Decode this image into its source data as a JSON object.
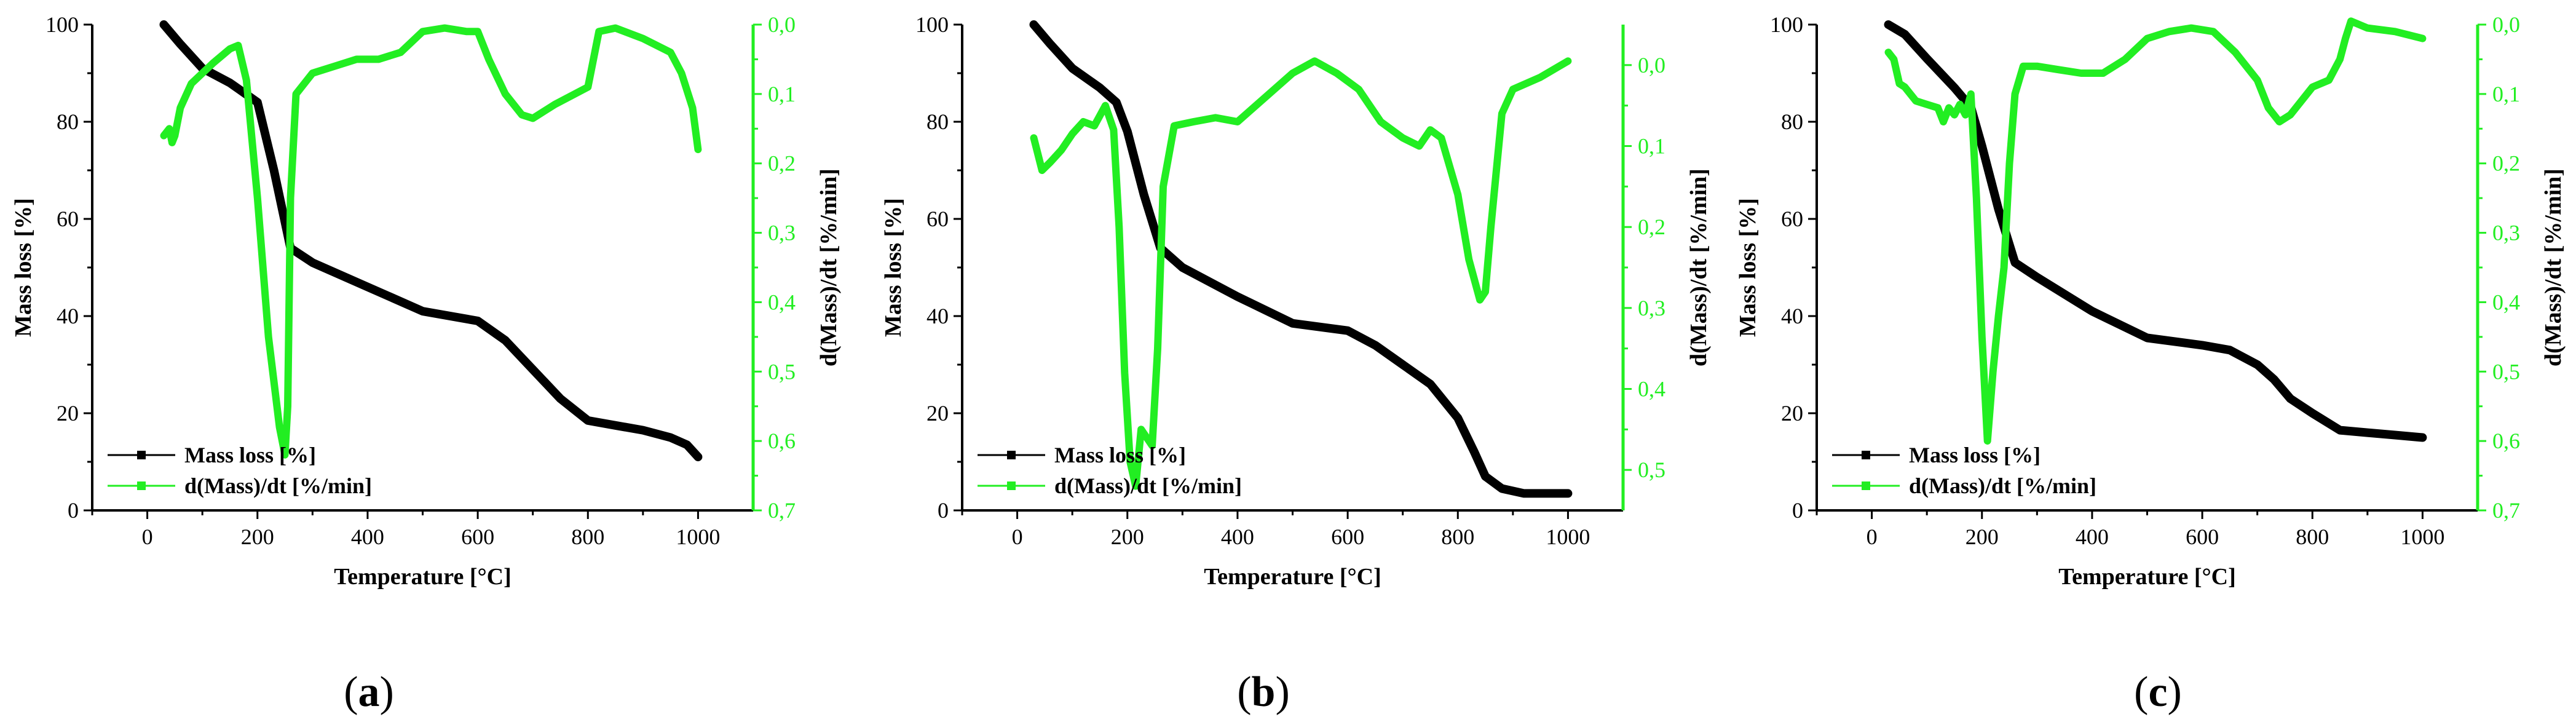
{
  "chart_data": [
    {
      "panel_label": "a",
      "type": "line",
      "xlabel": "Temperature [°C]",
      "ylabel": "Mass loss [%]",
      "y2label": "d(Mass)/dt [%/min]",
      "xlim": [
        -100,
        1100
      ],
      "ylim": [
        0,
        100
      ],
      "y2lim": [
        0.0,
        0.7
      ],
      "y2_inverted": true,
      "x_ticks": [
        "0",
        "200",
        "400",
        "600",
        "800",
        "1000"
      ],
      "y_ticks": [
        "0",
        "20",
        "40",
        "60",
        "80",
        "100"
      ],
      "y2_ticks": [
        "0,0",
        "0,1",
        "0,2",
        "0,3",
        "0,4",
        "0,5",
        "0,6",
        "0,7"
      ],
      "legend_position": "bottom-left",
      "series": [
        {
          "name": "Mass loss [%]",
          "axis": "left",
          "color": "#000000",
          "x": [
            30,
            60,
            100,
            150,
            200,
            230,
            260,
            300,
            400,
            500,
            600,
            650,
            700,
            750,
            800,
            850,
            900,
            950,
            980,
            1000
          ],
          "y": [
            100,
            96,
            91,
            88,
            84,
            70,
            54,
            51,
            46,
            41,
            39,
            35,
            29,
            23,
            18.5,
            17.5,
            16.5,
            15,
            13.5,
            11
          ]
        },
        {
          "name": "d(Mass)/dt [%/min]",
          "axis": "right",
          "color": "#22ee22",
          "x": [
            30,
            40,
            45,
            50,
            60,
            80,
            100,
            120,
            150,
            165,
            180,
            200,
            220,
            240,
            250,
            255,
            260,
            270,
            300,
            340,
            380,
            420,
            460,
            500,
            540,
            580,
            600,
            620,
            650,
            680,
            700,
            740,
            800,
            820,
            850,
            900,
            950,
            970,
            990,
            1000
          ],
          "y": [
            0.16,
            0.15,
            0.17,
            0.16,
            0.12,
            0.085,
            0.07,
            0.055,
            0.035,
            0.03,
            0.08,
            0.25,
            0.45,
            0.58,
            0.62,
            0.55,
            0.25,
            0.1,
            0.07,
            0.06,
            0.05,
            0.05,
            0.04,
            0.01,
            0.005,
            0.01,
            0.01,
            0.05,
            0.1,
            0.13,
            0.135,
            0.115,
            0.09,
            0.01,
            0.005,
            0.02,
            0.04,
            0.07,
            0.12,
            0.18
          ]
        }
      ]
    },
    {
      "panel_label": "b",
      "type": "line",
      "xlabel": "Temperature [°C]",
      "ylabel": "Mass loss [%]",
      "y2label": "d(Mass)/dt [%/min]",
      "xlim": [
        -100,
        1100
      ],
      "ylim": [
        0,
        100
      ],
      "y2lim": [
        -0.05,
        0.55
      ],
      "y2_inverted": true,
      "x_ticks": [
        "0",
        "200",
        "400",
        "600",
        "800",
        "1000"
      ],
      "y_ticks": [
        "0",
        "20",
        "40",
        "60",
        "80",
        "100"
      ],
      "y2_ticks": [
        "0,0",
        "0,1",
        "0,2",
        "0,3",
        "0,4",
        "0,5"
      ],
      "legend_position": "bottom-left",
      "series": [
        {
          "name": "Mass loss [%]",
          "axis": "left",
          "color": "#000000",
          "x": [
            30,
            60,
            100,
            150,
            180,
            200,
            230,
            260,
            300,
            400,
            500,
            600,
            650,
            700,
            750,
            800,
            830,
            850,
            880,
            920,
            1000
          ],
          "y": [
            100,
            96,
            91,
            87,
            84,
            78,
            65,
            54,
            50,
            44,
            38.5,
            37,
            34,
            30,
            26,
            19,
            12,
            7,
            4.5,
            3.5,
            3.5
          ]
        },
        {
          "name": "d(Mass)/dt [%/min]",
          "axis": "right",
          "color": "#22ee22",
          "x": [
            30,
            45,
            60,
            80,
            100,
            120,
            140,
            160,
            175,
            185,
            195,
            205,
            215,
            225,
            235,
            245,
            255,
            265,
            285,
            320,
            360,
            400,
            450,
            500,
            540,
            580,
            620,
            660,
            700,
            730,
            750,
            770,
            800,
            820,
            840,
            850,
            860,
            880,
            900,
            950,
            1000
          ],
          "y": [
            0.09,
            0.13,
            0.12,
            0.105,
            0.085,
            0.07,
            0.075,
            0.05,
            0.08,
            0.2,
            0.38,
            0.49,
            0.52,
            0.45,
            0.46,
            0.47,
            0.35,
            0.15,
            0.075,
            0.07,
            0.065,
            0.07,
            0.04,
            0.01,
            -0.005,
            0.01,
            0.03,
            0.07,
            0.09,
            0.1,
            0.08,
            0.09,
            0.16,
            0.24,
            0.29,
            0.28,
            0.2,
            0.06,
            0.03,
            0.015,
            -0.005
          ]
        }
      ]
    },
    {
      "panel_label": "c",
      "type": "line",
      "xlabel": "Temperature [°C]",
      "ylabel": "Mass loss [%]",
      "y2label": "d(Mass)/dt [%/min]",
      "xlim": [
        -100,
        1100
      ],
      "ylim": [
        0,
        100
      ],
      "y2lim": [
        0.0,
        0.7
      ],
      "y2_inverted": true,
      "x_ticks": [
        "0",
        "200",
        "400",
        "600",
        "800",
        "1000"
      ],
      "y_ticks": [
        "0",
        "20",
        "40",
        "60",
        "80",
        "100"
      ],
      "y2_ticks": [
        "0,0",
        "0,1",
        "0,2",
        "0,3",
        "0,4",
        "0,5",
        "0,6",
        "0,7"
      ],
      "legend_position": "bottom-left",
      "series": [
        {
          "name": "Mass loss [%]",
          "axis": "left",
          "color": "#000000",
          "x": [
            30,
            60,
            100,
            150,
            180,
            200,
            230,
            260,
            300,
            400,
            500,
            600,
            650,
            700,
            730,
            760,
            800,
            850,
            900,
            950,
            1000
          ],
          "y": [
            100,
            98,
            93,
            87,
            83,
            75,
            62,
            51,
            48,
            41,
            35.5,
            34,
            33,
            30,
            27,
            23,
            20,
            16.5,
            16,
            15.5,
            15
          ]
        },
        {
          "name": "d(Mass)/dt [%/min]",
          "axis": "right",
          "color": "#22ee22",
          "x": [
            30,
            40,
            50,
            60,
            80,
            100,
            120,
            130,
            140,
            150,
            160,
            170,
            180,
            190,
            200,
            210,
            220,
            230,
            240,
            250,
            260,
            275,
            300,
            340,
            380,
            420,
            460,
            500,
            540,
            580,
            620,
            660,
            700,
            720,
            740,
            760,
            800,
            830,
            850,
            860,
            870,
            900,
            950,
            1000
          ],
          "y": [
            0.04,
            0.05,
            0.085,
            0.09,
            0.11,
            0.115,
            0.12,
            0.14,
            0.12,
            0.13,
            0.115,
            0.13,
            0.1,
            0.25,
            0.45,
            0.6,
            0.5,
            0.42,
            0.35,
            0.2,
            0.1,
            0.06,
            0.06,
            0.065,
            0.07,
            0.07,
            0.05,
            0.02,
            0.01,
            0.005,
            0.01,
            0.04,
            0.08,
            0.12,
            0.14,
            0.13,
            0.09,
            0.08,
            0.05,
            0.02,
            -0.005,
            0.005,
            0.01,
            0.02
          ]
        }
      ]
    }
  ]
}
